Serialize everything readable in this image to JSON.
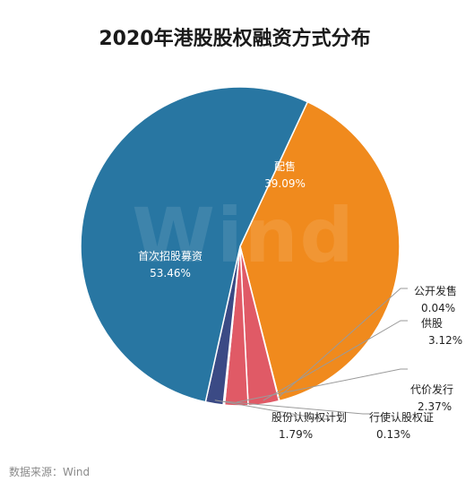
{
  "chart_data": {
    "type": "pie",
    "title": "2020年港股股权融资方式分布",
    "source": "数据来源：Wind",
    "watermark": "Wind",
    "slices": [
      {
        "name": "配售",
        "value": 39.09,
        "value_label": "39.09%",
        "color": "#F08A1D"
      },
      {
        "name": "公开发售",
        "value": 0.04,
        "value_label": "0.04%",
        "color": "#5CC2C4"
      },
      {
        "name": "供股",
        "value": 3.12,
        "value_label": "3.12%",
        "color": "#E05A66"
      },
      {
        "name": "代价发行",
        "value": 2.37,
        "value_label": "2.37%",
        "color": "#E05A66"
      },
      {
        "name": "行使认股权证",
        "value": 0.13,
        "value_label": "0.13%",
        "color": "#3B4A85"
      },
      {
        "name": "股份认购权计划",
        "value": 1.79,
        "value_label": "1.79%",
        "color": "#3B4A85"
      },
      {
        "name": "首次招股募资",
        "value": 53.46,
        "value_label": "53.46%",
        "color": "#2876A2"
      }
    ]
  }
}
